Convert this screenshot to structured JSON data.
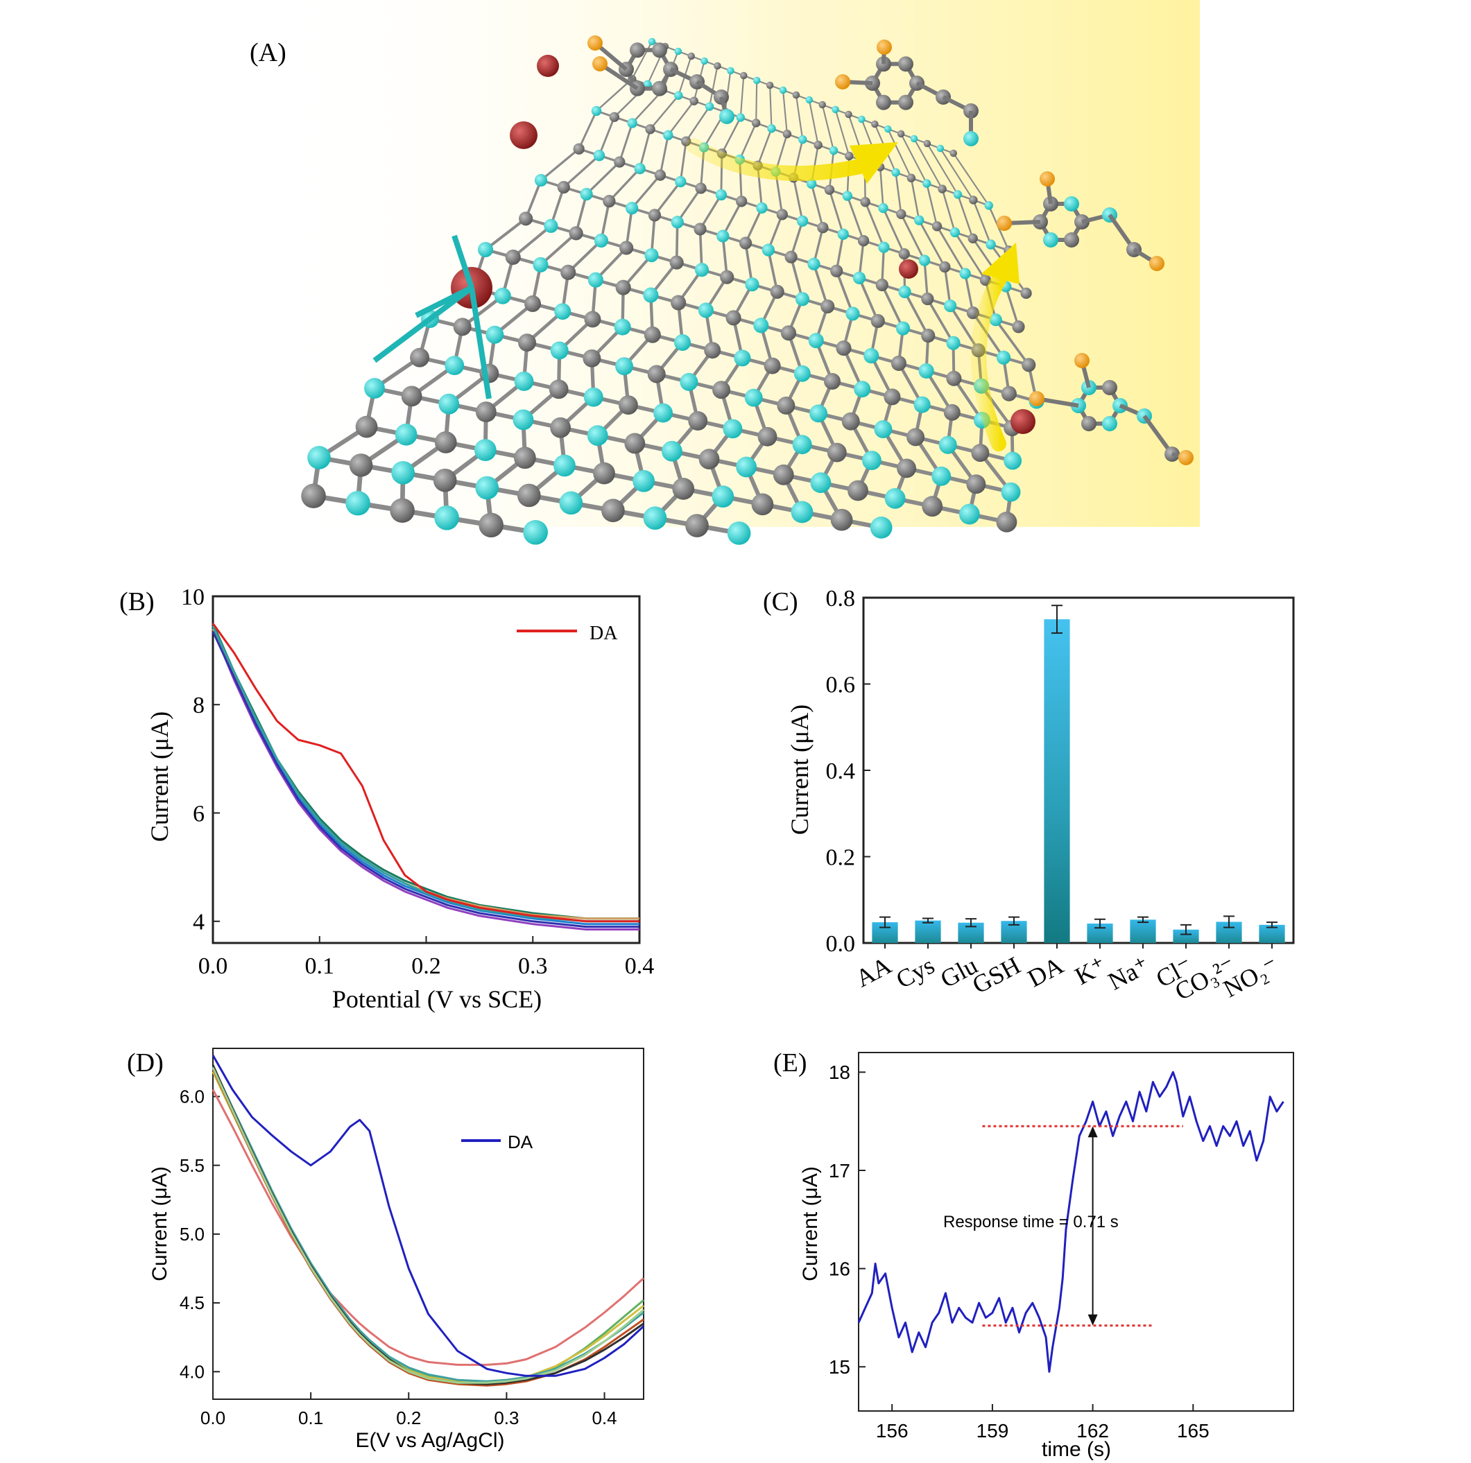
{
  "panels": {
    "A": {
      "label": "(A)"
    },
    "B": {
      "label": "(B)"
    },
    "C": {
      "label": "(C)"
    },
    "D": {
      "label": "(D)"
    },
    "E": {
      "label": "(E)"
    }
  },
  "colors": {
    "carbon": "#6f6f6f",
    "nitrogen": "#22d2d2",
    "metal": "#a52a2a",
    "oxygen": "#f0a020",
    "hydrogen": "#ffffff",
    "glow": "#fff3a0",
    "arrow": "#f5e000",
    "bar_top": "#35b8ea",
    "bar_dark": "#1d8a96",
    "red_line": "#e02020",
    "blue_line": "#2020c0",
    "dotted": "#e03030"
  },
  "chart_data": [
    {
      "panel": "B",
      "type": "line",
      "title": "",
      "xlabel": "Potential (V vs SCE)",
      "ylabel": "Current (μA)",
      "xlim": [
        0.0,
        0.4
      ],
      "ylim": [
        3.6,
        10.0
      ],
      "xticks": [
        "0.0",
        "0.1",
        "0.2",
        "0.3",
        "0.4"
      ],
      "yticks": [
        "4",
        "6",
        "8",
        "10"
      ],
      "legend": {
        "position": "top-right",
        "entries": [
          "DA"
        ]
      },
      "x": [
        0.0,
        0.02,
        0.04,
        0.06,
        0.08,
        0.1,
        0.12,
        0.14,
        0.16,
        0.18,
        0.2,
        0.22,
        0.25,
        0.3,
        0.35,
        0.4
      ],
      "series": [
        {
          "name": "DA",
          "color": "#e02020",
          "values": [
            9.5,
            8.95,
            8.3,
            7.7,
            7.35,
            7.25,
            7.1,
            6.5,
            5.5,
            4.85,
            4.55,
            4.4,
            4.25,
            4.1,
            4.0,
            4.0
          ]
        },
        {
          "name": "",
          "color": "#1a7a60",
          "values": [
            9.5,
            8.6,
            7.8,
            7.0,
            6.4,
            5.9,
            5.5,
            5.2,
            4.95,
            4.75,
            4.6,
            4.45,
            4.3,
            4.15,
            4.05,
            4.05
          ]
        },
        {
          "name": "",
          "color": "#2080d0",
          "values": [
            9.45,
            8.55,
            7.7,
            6.95,
            6.3,
            5.8,
            5.4,
            5.1,
            4.85,
            4.65,
            4.5,
            4.35,
            4.2,
            4.05,
            3.95,
            3.95
          ]
        },
        {
          "name": "",
          "color": "#9040c0",
          "values": [
            9.4,
            8.45,
            7.6,
            6.85,
            6.2,
            5.7,
            5.3,
            5.0,
            4.75,
            4.55,
            4.4,
            4.25,
            4.1,
            3.95,
            3.85,
            3.85
          ]
        },
        {
          "name": "",
          "color": "#d0a060",
          "values": [
            9.4,
            8.55,
            7.75,
            7.0,
            6.35,
            5.85,
            5.45,
            5.15,
            4.9,
            4.7,
            4.55,
            4.42,
            4.28,
            4.12,
            4.05,
            4.05
          ]
        },
        {
          "name": "",
          "color": "#3030b0",
          "values": [
            9.35,
            8.5,
            7.65,
            6.9,
            6.25,
            5.75,
            5.35,
            5.05,
            4.8,
            4.6,
            4.45,
            4.3,
            4.15,
            4.0,
            3.9,
            3.9
          ]
        },
        {
          "name": "",
          "color": "#30a0a0",
          "values": [
            9.45,
            8.6,
            7.75,
            7.0,
            6.35,
            5.85,
            5.45,
            5.15,
            4.9,
            4.7,
            4.52,
            4.38,
            4.22,
            4.08,
            4.0,
            4.0
          ]
        }
      ]
    },
    {
      "panel": "C",
      "type": "bar",
      "title": "",
      "xlabel": "",
      "ylabel": "Current (μA)",
      "ylim": [
        0.0,
        0.8
      ],
      "yticks": [
        "0.0",
        "0.2",
        "0.4",
        "0.6",
        "0.8"
      ],
      "categories": [
        "AA",
        "Cys",
        "Glu",
        "GSH",
        "DA",
        "K⁺",
        "Na⁺",
        "Cl⁻",
        "CO₃²⁻",
        "NO₂⁻"
      ],
      "values": [
        0.048,
        0.052,
        0.047,
        0.051,
        0.75,
        0.045,
        0.054,
        0.031,
        0.049,
        0.042
      ],
      "errors": [
        0.012,
        0.005,
        0.009,
        0.009,
        0.032,
        0.01,
        0.006,
        0.011,
        0.013,
        0.006
      ]
    },
    {
      "panel": "D",
      "type": "line",
      "title": "",
      "xlabel": "E(V vs Ag/AgCl)",
      "ylabel": "Current (μA)",
      "xlim": [
        0.0,
        0.44
      ],
      "ylim": [
        3.8,
        6.35
      ],
      "xticks": [
        "0.0",
        "0.1",
        "0.2",
        "0.3",
        "0.4"
      ],
      "yticks": [
        "4.0",
        "4.5",
        "5.0",
        "5.5",
        "6.0"
      ],
      "legend": {
        "position": "top-right",
        "entries": [
          "DA"
        ]
      },
      "x": [
        0.0,
        0.02,
        0.04,
        0.06,
        0.08,
        0.1,
        0.12,
        0.14,
        0.15,
        0.16,
        0.18,
        0.2,
        0.22,
        0.25,
        0.28,
        0.3,
        0.32,
        0.35,
        0.38,
        0.4,
        0.42,
        0.44
      ],
      "series": [
        {
          "name": "DA",
          "color": "#2020c0",
          "values": [
            6.3,
            6.05,
            5.85,
            5.72,
            5.6,
            5.5,
            5.6,
            5.78,
            5.83,
            5.75,
            5.2,
            4.75,
            4.42,
            4.15,
            4.02,
            3.99,
            3.97,
            3.97,
            4.02,
            4.1,
            4.2,
            4.33
          ]
        },
        {
          "name": "",
          "color": "#e07070",
          "values": [
            6.05,
            5.78,
            5.5,
            5.23,
            4.98,
            4.76,
            4.57,
            4.42,
            4.35,
            4.29,
            4.18,
            4.11,
            4.07,
            4.05,
            4.05,
            4.06,
            4.09,
            4.18,
            4.32,
            4.43,
            4.55,
            4.68
          ]
        },
        {
          "name": "",
          "color": "#60b060",
          "values": [
            6.2,
            5.9,
            5.6,
            5.3,
            5.03,
            4.78,
            4.56,
            4.37,
            4.29,
            4.22,
            4.1,
            4.02,
            3.97,
            3.93,
            3.92,
            3.93,
            3.95,
            4.03,
            4.17,
            4.28,
            4.4,
            4.52
          ]
        },
        {
          "name": "",
          "color": "#d0c040",
          "values": [
            6.18,
            5.88,
            5.58,
            5.29,
            5.02,
            4.77,
            4.55,
            4.36,
            4.28,
            4.21,
            4.09,
            4.01,
            3.96,
            3.93,
            3.93,
            3.94,
            3.96,
            4.04,
            4.16,
            4.26,
            4.37,
            4.48
          ]
        },
        {
          "name": "",
          "color": "#40a0a0",
          "values": [
            6.22,
            5.92,
            5.62,
            5.32,
            5.04,
            4.79,
            4.57,
            4.38,
            4.3,
            4.23,
            4.11,
            4.03,
            3.98,
            3.94,
            3.93,
            3.94,
            3.96,
            4.02,
            4.13,
            4.22,
            4.32,
            4.43
          ]
        },
        {
          "name": "",
          "color": "#c05020",
          "values": [
            6.2,
            5.89,
            5.58,
            5.28,
            5.0,
            4.75,
            4.53,
            4.34,
            4.26,
            4.19,
            4.07,
            3.99,
            3.94,
            3.91,
            3.9,
            3.91,
            3.93,
            3.99,
            4.09,
            4.18,
            4.28,
            4.38
          ]
        },
        {
          "name": "",
          "color": "#303030",
          "values": [
            6.23,
            5.91,
            5.6,
            5.3,
            5.02,
            4.77,
            4.55,
            4.36,
            4.28,
            4.21,
            4.09,
            4.0,
            3.95,
            3.92,
            3.91,
            3.92,
            3.94,
            3.99,
            4.08,
            4.16,
            4.25,
            4.35
          ]
        },
        {
          "name": "",
          "color": "#a0d090",
          "values": [
            6.21,
            5.9,
            5.59,
            5.29,
            5.01,
            4.76,
            4.54,
            4.35,
            4.27,
            4.2,
            4.08,
            4.0,
            3.95,
            3.92,
            3.92,
            3.93,
            3.95,
            4.01,
            4.12,
            4.22,
            4.33,
            4.45
          ]
        }
      ]
    },
    {
      "panel": "E",
      "type": "line",
      "title": "",
      "xlabel": "time (s)",
      "ylabel": "Current (μA)",
      "xlim": [
        155.0,
        168.0
      ],
      "ylim": [
        14.55,
        18.2
      ],
      "xticks": [
        "156",
        "159",
        "162",
        "165"
      ],
      "yticks": [
        "15",
        "16",
        "17",
        "18"
      ],
      "annotation": "Response time = 0.71 s",
      "reference_levels": [
        {
          "y": 17.45,
          "x_start": 158.7,
          "x_end": 164.7
        },
        {
          "y": 15.42,
          "x_start": 158.7,
          "x_end": 163.8
        }
      ],
      "response_arrow": {
        "x": 162.0,
        "y_from": 15.42,
        "y_to": 17.45
      },
      "x": [
        155.0,
        155.2,
        155.4,
        155.5,
        155.6,
        155.8,
        156.0,
        156.2,
        156.4,
        156.6,
        156.8,
        157.0,
        157.2,
        157.4,
        157.6,
        157.8,
        158.0,
        158.2,
        158.4,
        158.6,
        158.8,
        159.0,
        159.2,
        159.4,
        159.6,
        159.8,
        160.0,
        160.2,
        160.4,
        160.6,
        160.7,
        160.8,
        161.0,
        161.1,
        161.2,
        161.4,
        161.6,
        161.8,
        162.0,
        162.2,
        162.4,
        162.6,
        162.8,
        163.0,
        163.2,
        163.4,
        163.6,
        163.8,
        164.0,
        164.2,
        164.4,
        164.5,
        164.7,
        164.9,
        165.1,
        165.3,
        165.5,
        165.7,
        165.9,
        166.1,
        166.3,
        166.5,
        166.7,
        166.9,
        167.1,
        167.3,
        167.5,
        167.7
      ],
      "series": [
        {
          "name": "",
          "color": "#2020c0",
          "values": [
            15.45,
            15.6,
            15.75,
            16.05,
            15.85,
            15.95,
            15.6,
            15.3,
            15.45,
            15.15,
            15.35,
            15.2,
            15.45,
            15.55,
            15.75,
            15.45,
            15.6,
            15.5,
            15.45,
            15.65,
            15.5,
            15.55,
            15.7,
            15.45,
            15.6,
            15.35,
            15.55,
            15.65,
            15.5,
            15.3,
            14.95,
            15.2,
            15.6,
            15.9,
            16.4,
            16.9,
            17.35,
            17.5,
            17.7,
            17.45,
            17.6,
            17.35,
            17.55,
            17.7,
            17.5,
            17.8,
            17.6,
            17.9,
            17.75,
            17.85,
            18.0,
            17.9,
            17.55,
            17.75,
            17.5,
            17.3,
            17.45,
            17.25,
            17.45,
            17.35,
            17.5,
            17.25,
            17.4,
            17.1,
            17.3,
            17.75,
            17.6,
            17.7
          ]
        }
      ]
    }
  ]
}
